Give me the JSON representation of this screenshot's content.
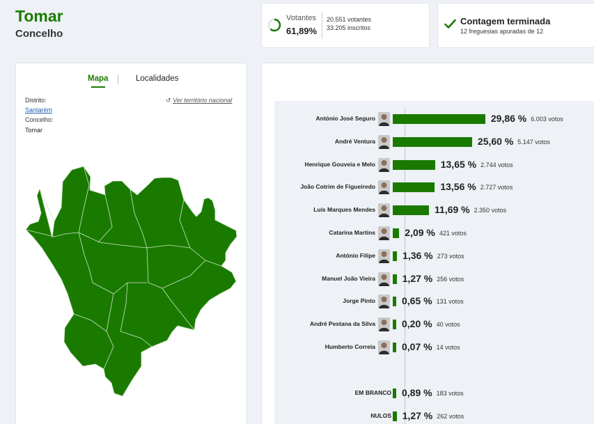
{
  "header": {
    "title": "Tomar",
    "subtitle": "Concelho"
  },
  "votantes": {
    "label": "Votantes",
    "percent": "61,89%",
    "fraction": 0.6189,
    "votes": "20.551 votantes",
    "inscritos": "33.205 inscritos"
  },
  "contagem": {
    "title": "Contagem terminada",
    "subtitle": "12 freguesias apuradas de 12"
  },
  "map_panel": {
    "tabs": {
      "mapa": "Mapa",
      "localidades": "Localidades"
    },
    "distrito_label": "Distrito:",
    "distrito_value": "Santarém",
    "concelho_label": "Concelho:",
    "concelho_value": "Tomar",
    "national_link": "Ver território nacional"
  },
  "colors": {
    "accent": "#1a7a00",
    "link": "#1f5fb0"
  },
  "candidates": [
    {
      "name": "António José Seguro",
      "percent_label": "29,86 %",
      "value": 29.86,
      "votes": "6.003 votos",
      "avatar": "portrait-icon"
    },
    {
      "name": "André Ventura",
      "percent_label": "25,60 %",
      "value": 25.6,
      "votes": "5.147 votos",
      "avatar": "portrait-icon"
    },
    {
      "name": "Henrique Gouveia e Melo",
      "percent_label": "13,65 %",
      "value": 13.65,
      "votes": "2.744 votos",
      "avatar": "portrait-icon"
    },
    {
      "name": "João Cotrim de Figueiredo",
      "percent_label": "13,56 %",
      "value": 13.56,
      "votes": "2.727 votos",
      "avatar": "portrait-icon"
    },
    {
      "name": "Luís Marques Mendes",
      "percent_label": "11,69 %",
      "value": 11.69,
      "votes": "2.350 votos",
      "avatar": "portrait-icon"
    },
    {
      "name": "Catarina Martins",
      "percent_label": "2,09 %",
      "value": 2.09,
      "votes": "421 votos",
      "avatar": "portrait-icon"
    },
    {
      "name": "António Filipe",
      "percent_label": "1,36 %",
      "value": 1.36,
      "votes": "273 votos",
      "avatar": "portrait-icon"
    },
    {
      "name": "Manuel João Vieira",
      "percent_label": "1,27 %",
      "value": 1.27,
      "votes": "256 votos",
      "avatar": "portrait-icon"
    },
    {
      "name": "Jorge Pinto",
      "percent_label": "0,65 %",
      "value": 0.65,
      "votes": "131 votos",
      "avatar": "portrait-icon"
    },
    {
      "name": "André Pestana da Silva",
      "percent_label": "0,20 %",
      "value": 0.2,
      "votes": "40 votos",
      "avatar": "portrait-icon"
    },
    {
      "name": "Humberto Correia",
      "percent_label": "0,07 %",
      "value": 0.07,
      "votes": "14 votos",
      "avatar": "portrait-icon"
    }
  ],
  "others": [
    {
      "name": "EM BRANCO",
      "percent_label": "0,89 %",
      "value": 0.89,
      "votes": "183 votos"
    },
    {
      "name": "NULOS",
      "percent_label": "1,27 %",
      "value": 1.27,
      "votes": "262 votos"
    }
  ]
}
